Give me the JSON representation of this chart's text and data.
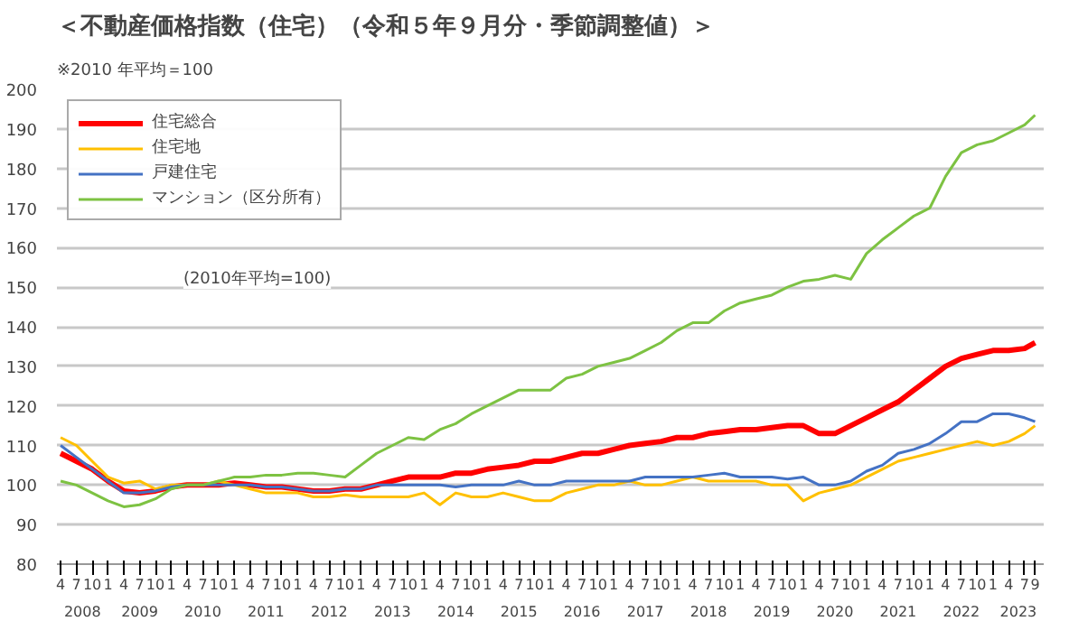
{
  "chart_data": {
    "type": "line",
    "title": "＜不動産価格指数（住宅）（令和５年９月分・季節調整値）＞",
    "subtitle": "※2010 年平均＝100",
    "annotations": [
      "(2010年平均=100)",
      "2008",
      "2009",
      "2010",
      "2011",
      "2012",
      "2013",
      "2014",
      "2015",
      "2016",
      "2017",
      "2018",
      "2019",
      "2020",
      "2021",
      "2022",
      "2023"
    ],
    "x": [
      "2008-04",
      "2008-07",
      "2008-10",
      "2009-01",
      "2009-04",
      "2009-07",
      "2009-10",
      "2010-01",
      "2010-04",
      "2010-07",
      "2010-10",
      "2011-01",
      "2011-04",
      "2011-07",
      "2011-10",
      "2012-01",
      "2012-04",
      "2012-07",
      "2012-10",
      "2013-01",
      "2013-04",
      "2013-07",
      "2013-10",
      "2014-01",
      "2014-04",
      "2014-07",
      "2014-10",
      "2015-01",
      "2015-04",
      "2015-07",
      "2015-10",
      "2016-01",
      "2016-04",
      "2016-07",
      "2016-10",
      "2017-01",
      "2017-04",
      "2017-07",
      "2017-10",
      "2018-01",
      "2018-04",
      "2018-07",
      "2018-10",
      "2019-01",
      "2019-04",
      "2019-07",
      "2019-10",
      "2020-01",
      "2020-04",
      "2020-07",
      "2020-10",
      "2021-01",
      "2021-04",
      "2021-07",
      "2021-10",
      "2022-01",
      "2022-04",
      "2022-07",
      "2022-10",
      "2023-01",
      "2023-04",
      "2023-07",
      "2023-09"
    ],
    "series": [
      {
        "name": "住宅総合",
        "color": "#ff0000",
        "values": [
          108,
          106,
          104,
          101,
          98.5,
          98,
          98.5,
          99.5,
          100,
          100,
          100,
          100.5,
          100,
          99.5,
          99.5,
          99,
          98.5,
          98.5,
          99,
          99,
          100,
          101,
          102,
          102,
          102,
          103,
          103,
          104,
          104.5,
          105,
          106,
          106,
          107,
          108,
          108,
          109,
          110,
          110.5,
          111,
          112,
          112,
          113,
          113.5,
          114,
          114,
          114.5,
          115,
          115,
          113,
          113,
          115,
          117,
          119,
          121,
          124,
          127,
          130,
          132,
          133,
          134,
          134,
          134.5,
          136
        ]
      },
      {
        "name": "住宅地",
        "color": "#ffc000",
        "values": [
          112,
          110,
          106,
          102,
          100.5,
          101,
          99,
          100,
          100,
          100,
          101,
          100,
          99,
          98,
          98,
          98,
          97,
          97,
          97.5,
          97,
          97,
          97,
          97,
          98,
          95,
          98,
          97,
          97,
          98,
          97,
          96,
          96,
          98,
          99,
          100,
          100,
          101,
          100,
          100,
          101,
          102,
          101,
          101,
          101,
          101,
          100,
          100,
          96,
          98,
          99,
          100,
          102,
          104,
          106,
          107,
          108,
          109,
          110,
          111,
          110,
          111,
          113,
          115
        ]
      },
      {
        "name": "戸建住宅",
        "color": "#4472c4",
        "values": [
          110,
          107,
          104,
          101,
          98,
          98,
          98.5,
          99.5,
          100,
          100,
          100,
          100,
          100,
          99.5,
          99.5,
          99,
          98.5,
          98.5,
          99,
          99,
          100,
          100,
          100,
          100,
          100,
          99.5,
          100,
          100,
          100,
          101,
          100,
          100,
          101,
          101,
          101,
          101,
          101,
          102,
          102,
          102,
          102,
          102.5,
          103,
          102,
          102,
          102,
          101.5,
          102,
          100,
          100,
          101,
          103.5,
          105,
          108,
          109,
          110.5,
          113,
          116,
          116,
          118,
          118,
          117,
          116
        ]
      },
      {
        "name": "マンション（区分所有）",
        "color": "#7dc242",
        "values": [
          101,
          100,
          98,
          96,
          94.5,
          95,
          96.5,
          99,
          100,
          100,
          101,
          102,
          102,
          102.5,
          102.5,
          103,
          103,
          102.5,
          102,
          105,
          108,
          110,
          112,
          111.5,
          114,
          115.5,
          118,
          120,
          122,
          124,
          124,
          124,
          127,
          128,
          130,
          131,
          132,
          134,
          136,
          139,
          141,
          141,
          144,
          146,
          147,
          148,
          150,
          151.5,
          152,
          153,
          152,
          158.5,
          162,
          165,
          168,
          170,
          178,
          184,
          186,
          187,
          189,
          191,
          193.5
        ]
      }
    ],
    "ylim": [
      80,
      200
    ],
    "yticks": [
      80,
      90,
      100,
      110,
      120,
      130,
      140,
      150,
      160,
      170,
      180,
      190,
      200
    ],
    "xlim": [
      "2008-03-10",
      "2023-10-20"
    ],
    "xticks": [
      {
        "value": "2008-04",
        "label": "4"
      },
      {
        "value": "2008-07",
        "label": "7"
      },
      {
        "value": "2008-10",
        "label": "10"
      },
      {
        "value": "2009-01",
        "label": "1"
      },
      {
        "value": "2009-04",
        "label": "4"
      },
      {
        "value": "2009-07",
        "label": "7"
      },
      {
        "value": "2009-10",
        "label": "10"
      },
      {
        "value": "2010-01",
        "label": "1"
      },
      {
        "value": "2010-04",
        "label": "4"
      },
      {
        "value": "2010-07",
        "label": "7"
      },
      {
        "value": "2010-10",
        "label": "10"
      },
      {
        "value": "2011-01",
        "label": "1"
      },
      {
        "value": "2011-04",
        "label": "4"
      },
      {
        "value": "2011-07",
        "label": "7"
      },
      {
        "value": "2011-10",
        "label": "10"
      },
      {
        "value": "2012-01",
        "label": "1"
      },
      {
        "value": "2012-04",
        "label": "4"
      },
      {
        "value": "2012-07",
        "label": "7"
      },
      {
        "value": "2012-10",
        "label": "10"
      },
      {
        "value": "2013-01",
        "label": "1"
      },
      {
        "value": "2013-04",
        "label": "4"
      },
      {
        "value": "2013-07",
        "label": "7"
      },
      {
        "value": "2013-10",
        "label": "10"
      },
      {
        "value": "2014-01",
        "label": "1"
      },
      {
        "value": "2014-04",
        "label": "4"
      },
      {
        "value": "2014-07",
        "label": "7"
      },
      {
        "value": "2014-10",
        "label": "10"
      },
      {
        "value": "2015-01",
        "label": "1"
      },
      {
        "value": "2015-04",
        "label": "4"
      },
      {
        "value": "2015-07",
        "label": "7"
      },
      {
        "value": "2015-10",
        "label": "10"
      },
      {
        "value": "2016-01",
        "label": "1"
      },
      {
        "value": "2016-04",
        "label": "4"
      },
      {
        "value": "2016-07",
        "label": "7"
      },
      {
        "value": "2016-10",
        "label": "10"
      },
      {
        "value": "2017-01",
        "label": "1"
      },
      {
        "value": "2017-04",
        "label": "4"
      },
      {
        "value": "2017-07",
        "label": "7"
      },
      {
        "value": "2017-10",
        "label": "10"
      },
      {
        "value": "2018-01",
        "label": "1"
      },
      {
        "value": "2018-04",
        "label": "4"
      },
      {
        "value": "2018-07",
        "label": "7"
      },
      {
        "value": "2018-10",
        "label": "10"
      },
      {
        "value": "2019-01",
        "label": "1"
      },
      {
        "value": "2019-04",
        "label": "4"
      },
      {
        "value": "2019-07",
        "label": "7"
      },
      {
        "value": "2019-10",
        "label": "10"
      },
      {
        "value": "2020-01",
        "label": "1"
      },
      {
        "value": "2020-04",
        "label": "4"
      },
      {
        "value": "2020-07",
        "label": "7"
      },
      {
        "value": "2020-10",
        "label": "10"
      },
      {
        "value": "2021-01",
        "label": "1"
      },
      {
        "value": "2021-04",
        "label": "4"
      },
      {
        "value": "2021-07",
        "label": "7"
      },
      {
        "value": "2021-10",
        "label": "10"
      },
      {
        "value": "2022-01",
        "label": "1"
      },
      {
        "value": "2022-04",
        "label": "4"
      },
      {
        "value": "2022-07",
        "label": "7"
      },
      {
        "value": "2022-10",
        "label": "10"
      },
      {
        "value": "2023-01",
        "label": "1"
      },
      {
        "value": "2023-04",
        "label": "4"
      },
      {
        "value": "2023-07",
        "label": "7"
      },
      {
        "value": "2023-09",
        "label": "9"
      }
    ],
    "grid": "y",
    "legend": "top left",
    "marker": "none",
    "line_style": "solid"
  }
}
